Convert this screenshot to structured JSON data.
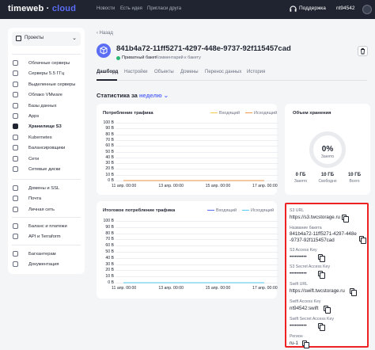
{
  "topbar": {
    "logo_main": "timeweb",
    "logo_accent": "cloud",
    "nav": [
      "Новости",
      "Есть идея",
      "Пригласи друга"
    ],
    "support": "Поддержка",
    "account": "nt94542"
  },
  "sidebar": {
    "project": "Проекты",
    "groups": [
      [
        "Облачные серверы",
        "Серверы 5.5 ГГц",
        "Выделенные серверы",
        "Облако VMware",
        "Базы данных",
        "Apps",
        "Хранилище S3",
        "Kubernetes",
        "Балансировщики",
        "Сети",
        "Сетевые диски"
      ],
      [
        "Домены и SSL",
        "Почта",
        "Личная сеть"
      ],
      [
        "Баланс и платежи",
        "API и Terraform"
      ],
      [
        "Багхантерам",
        "Документация"
      ]
    ],
    "active": "Хранилище S3"
  },
  "bucket": {
    "back": "Назад",
    "name": "841b4a72-11ff5271-4297-448e-9737-92f115457cad",
    "privacy": "Приватный бакет",
    "comment": "Комментарий к бакету"
  },
  "tabs": [
    "Дашборд",
    "Настройки",
    "Объекты",
    "Домены",
    "Перенос данных",
    "История"
  ],
  "stats": {
    "label": "Статистика за",
    "period": "неделю"
  },
  "chart_data": [
    {
      "type": "line",
      "title": "Потребление трафика",
      "series": [
        {
          "name": "Входящий",
          "values": [
            0,
            0,
            0,
            0
          ]
        },
        {
          "name": "Исходящий",
          "values": [
            0,
            0,
            0,
            0
          ]
        }
      ],
      "x": [
        "11 апр. 00:00",
        "13 апр. 00:00",
        "15 апр. 00:00",
        "17 апр. 00:00"
      ],
      "yticks": [
        "100 В",
        "90 В",
        "80 В",
        "70 В",
        "60 В",
        "50 В",
        "40 В",
        "30 В",
        "20 В",
        "10 В",
        "0 В"
      ],
      "ylim": [
        0,
        100
      ],
      "legend": "top-right",
      "colors": [
        "#f2c94c",
        "#f2994a"
      ]
    },
    {
      "type": "line",
      "title": "Итоговое потребление трафика",
      "series": [
        {
          "name": "Входящий",
          "values": [
            0,
            0,
            0,
            0
          ]
        },
        {
          "name": "Исходящий",
          "values": [
            0,
            0,
            0,
            0
          ]
        }
      ],
      "x": [
        "11 апр. 00:00",
        "13 апр. 00:00",
        "15 апр. 00:00",
        "17 апр. 00:00"
      ],
      "yticks": [
        "100 В",
        "90 В",
        "80 В",
        "70 В",
        "60 В",
        "50 В",
        "40 В",
        "30 В",
        "20 В",
        "10 В",
        "0 В"
      ],
      "ylim": [
        0,
        100
      ],
      "legend": "top-right",
      "colors": [
        "#5b6cf5",
        "#56ccf2"
      ]
    }
  ],
  "storage": {
    "title": "Объем хранения",
    "percent": "0%",
    "percent_label": "Занято",
    "used": "0 ГБ",
    "used_label": "Занято",
    "free": "10 ГБ",
    "free_label": "Свободно",
    "total": "10 ГБ",
    "total_label": "Всего"
  },
  "credentials": {
    "s3_url_label": "S3 URL",
    "s3_url": "https://s3.twcstorage.ru",
    "bucket_label": "Название бакета",
    "bucket_line1": "841b4a72-11ff5271-4297-448e",
    "bucket_line2": "-9737-92f115457cad",
    "access_label": "S3 Access Key",
    "access": "••••••••••",
    "secret_label": "S3 Secret Access Key",
    "secret": "••••••••••",
    "swift_url_label": "Swift URL",
    "swift_url": "https://swift.twcstorage.ru",
    "swift_access_label": "Swift Access Key",
    "swift_access": "nt94542:swift",
    "swift_secret_label": "Swift Secret Access Key",
    "swift_secret": "••••••••••",
    "region_label": "Регион",
    "region": "ru-1"
  },
  "colors": {
    "accent": "#5b6cf5",
    "dark": "#1f2430",
    "highlight": "#ee2222"
  }
}
